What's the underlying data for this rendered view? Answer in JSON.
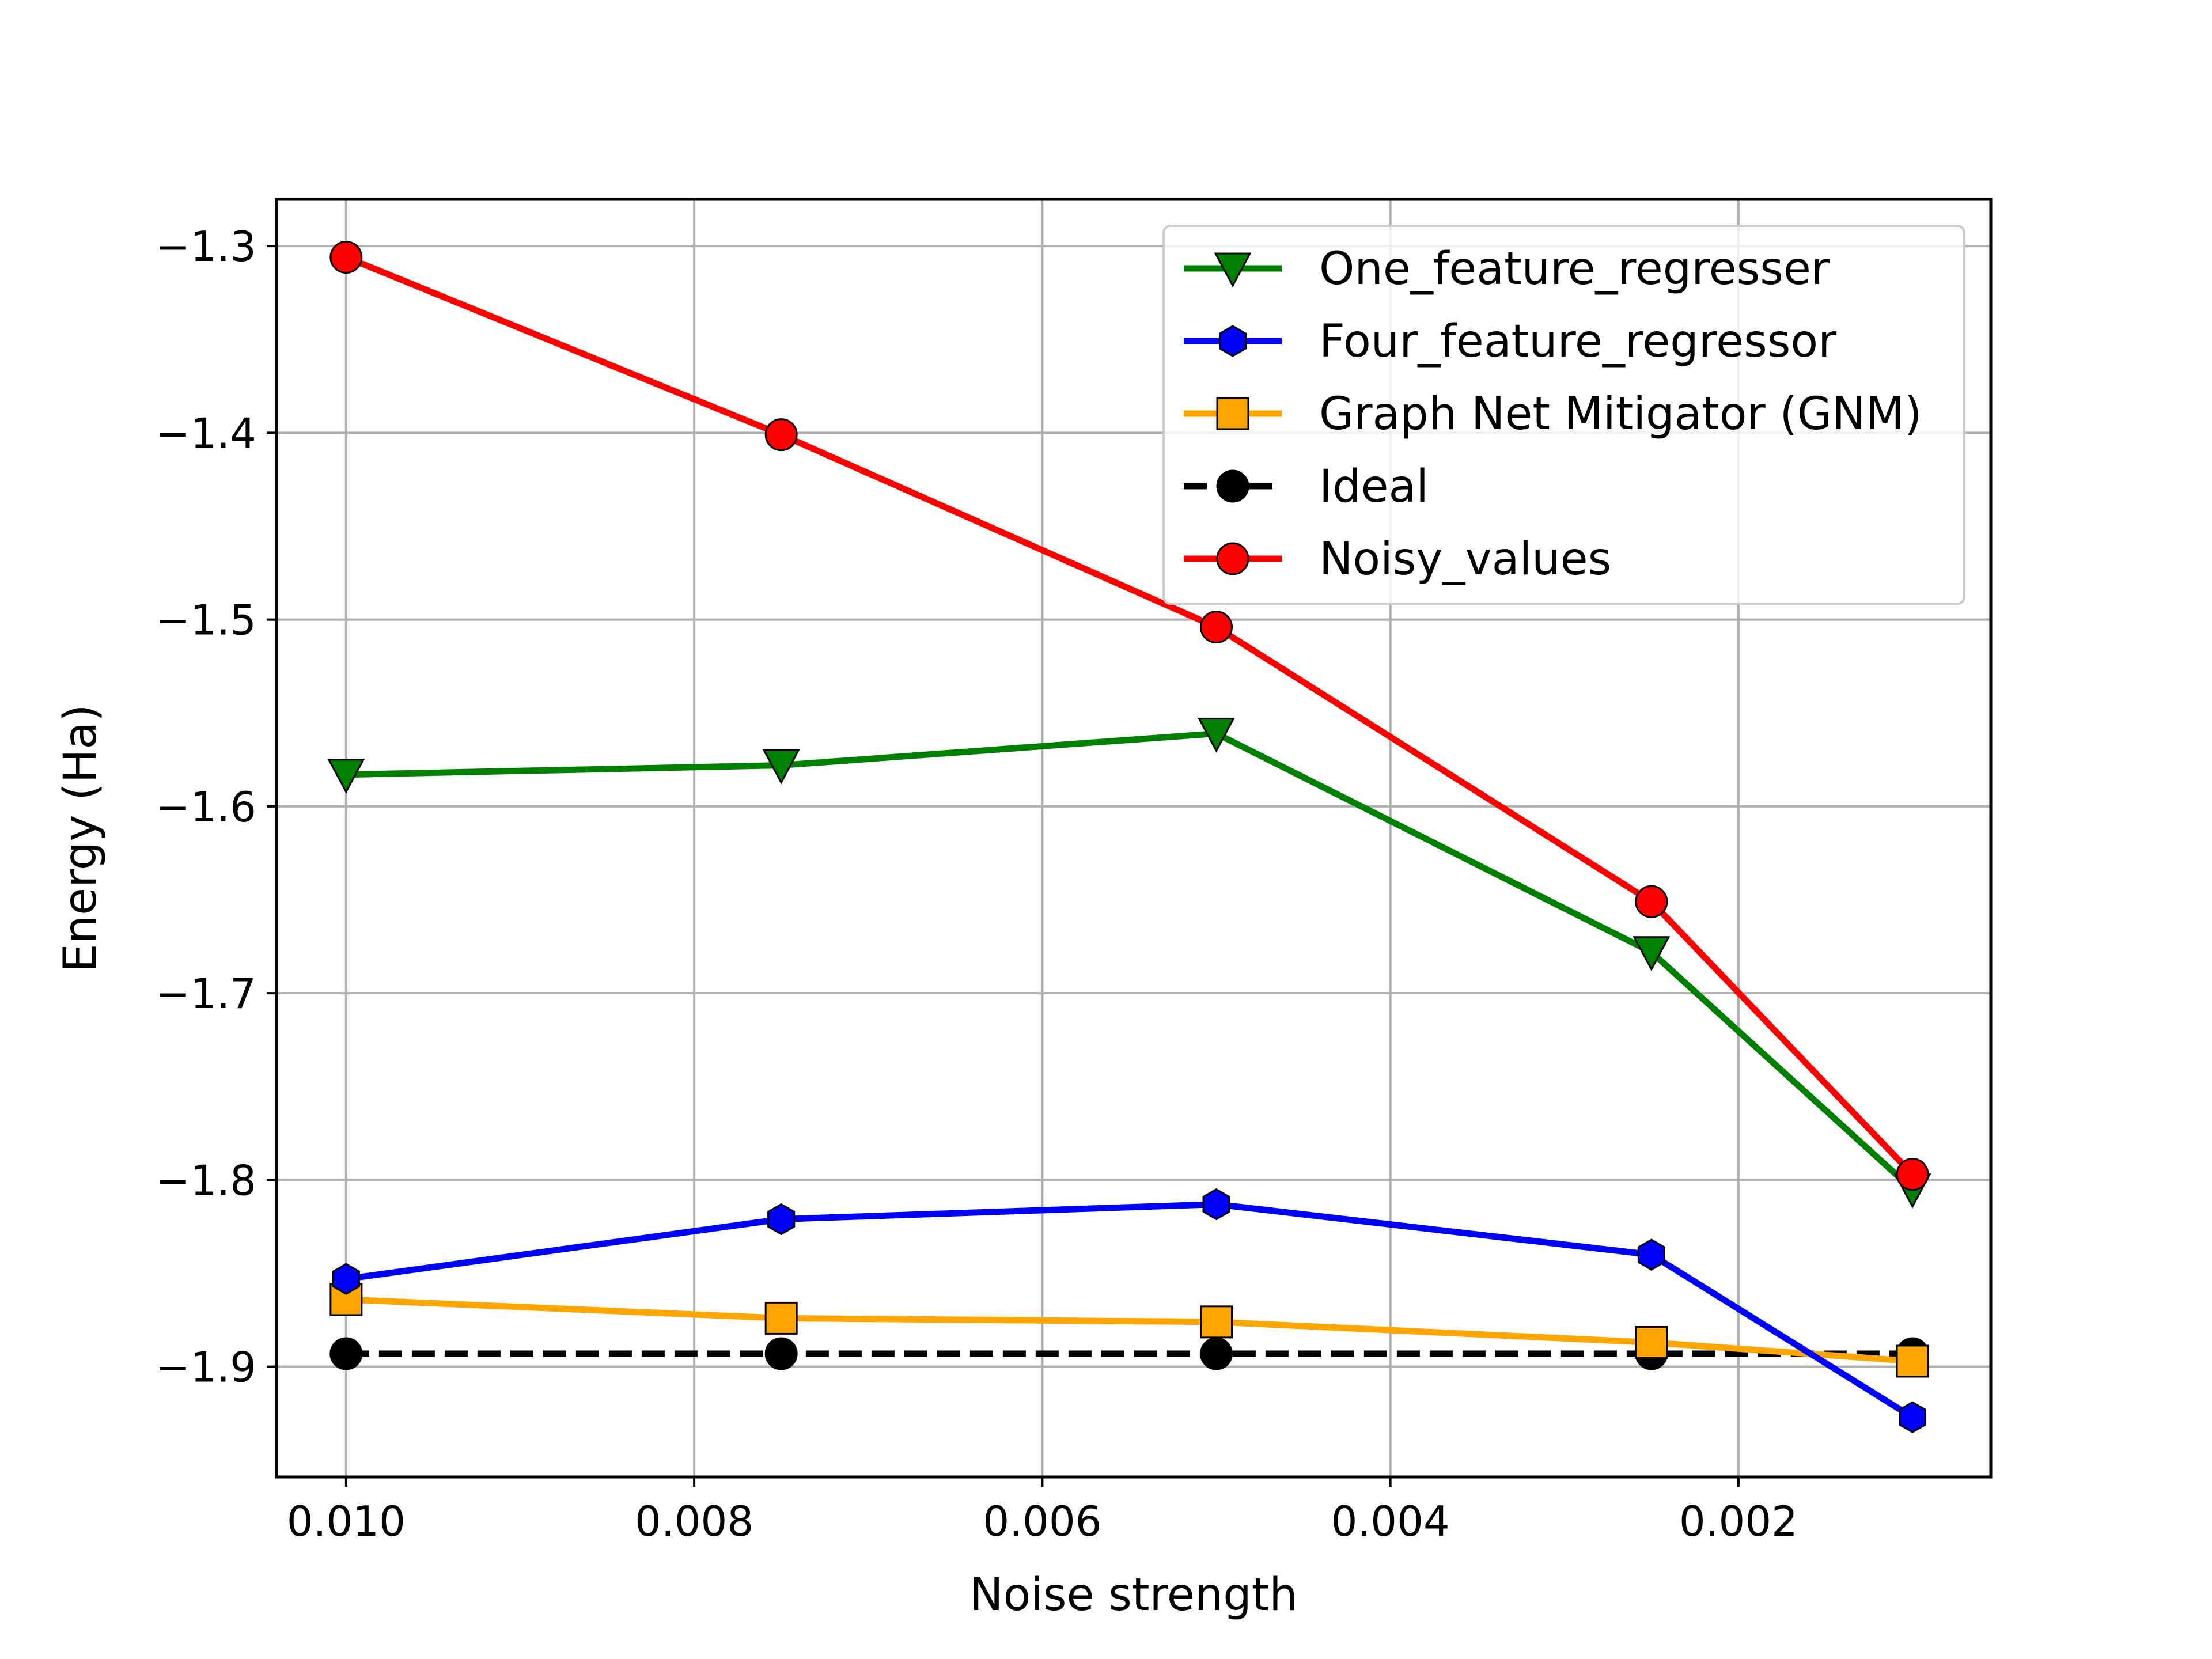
{
  "chart_data": {
    "type": "line",
    "xlabel": "Noise strength",
    "ylabel": "Energy (Ha)",
    "xlim": [
      0.0104,
      0.00055
    ],
    "ylim": [
      -1.959,
      -1.275
    ],
    "x_inverted": true,
    "grid": true,
    "legend_position": "top-right",
    "x_ticks": [
      0.01,
      0.008,
      0.006,
      0.004,
      0.002
    ],
    "x_tick_labels": [
      "0.010",
      "0.008",
      "0.006",
      "0.004",
      "0.002"
    ],
    "y_ticks": [
      -1.3,
      -1.4,
      -1.5,
      -1.6,
      -1.7,
      -1.8,
      -1.9
    ],
    "y_tick_labels": [
      "−1.3",
      "−1.4",
      "−1.5",
      "−1.6",
      "−1.7",
      "−1.8",
      "−1.9"
    ],
    "x": [
      0.01,
      0.0075,
      0.005,
      0.0025,
      0.001
    ],
    "series": [
      {
        "name": "One_feature_regresser",
        "color": "#008000",
        "marker": "triangle-down",
        "dashed": false,
        "values": [
          -1.583,
          -1.578,
          -1.561,
          -1.678,
          -1.805
        ]
      },
      {
        "name": "Four_feature_regressor",
        "color": "#0000ff",
        "marker": "hexagon",
        "dashed": false,
        "values": [
          -1.853,
          -1.821,
          -1.813,
          -1.84,
          -1.927
        ]
      },
      {
        "name": "Graph Net Mitigator (GNM)",
        "color": "#ffa500",
        "marker": "square",
        "dashed": false,
        "values": [
          -1.864,
          -1.874,
          -1.876,
          -1.887,
          -1.897
        ]
      },
      {
        "name": "Ideal",
        "color": "#000000",
        "marker": "circle",
        "dashed": true,
        "values": [
          -1.893,
          -1.893,
          -1.893,
          -1.893,
          -1.893
        ]
      },
      {
        "name": "Noisy_values",
        "color": "#ff0000",
        "marker": "circle",
        "dashed": false,
        "values": [
          -1.306,
          -1.401,
          -1.504,
          -1.651,
          -1.797
        ]
      }
    ]
  }
}
